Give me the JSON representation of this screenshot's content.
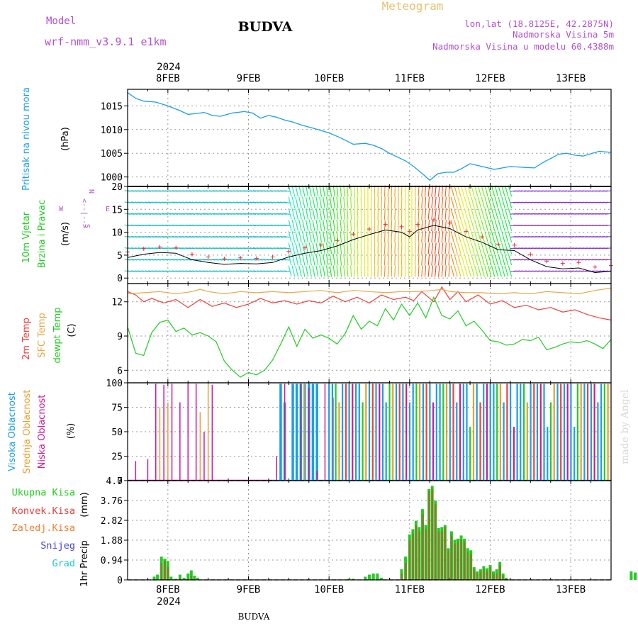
{
  "header": {
    "model_label": "Model",
    "model_name": "wrf-nmm_v3.9.1 e1km",
    "station": "BUDVA",
    "meteogram": "Meteogram",
    "lonlat": "lon,lat (18.8125E, 42.2875N)",
    "altitude": "Nadmorska Visina 5m",
    "model_altitude": "Nadmorska Visina u modelu 60.4388m",
    "footer_station": "BUDVA",
    "credit": "made by Angel"
  },
  "time_axis": {
    "top_year": "2024",
    "bottom_year": "2024",
    "days": [
      "8FEB",
      "9FEB",
      "10FEB",
      "11FEB",
      "12FEB",
      "13FEB"
    ],
    "start_day": 7.5,
    "end_day": 13.5
  },
  "colors": {
    "pressure": "#1a9fe8",
    "temp2m": "#f0403c",
    "sfc_temp": "#e8a848",
    "dewpt": "#22cc22",
    "high_cloud": "#1a9fe8",
    "mid_cloud": "#e8a030",
    "low_cloud": "#cc1a99",
    "total_precip": "#22cc22",
    "conv_precip": "#e84040",
    "frz_precip": "#f08030",
    "snow": "#4444dd",
    "hail": "#22cccc",
    "wind_dir_label": "#b050d0"
  },
  "chart_data": [
    {
      "type": "line",
      "name": "pressure",
      "ylabel": "Pritisak na nivou mora",
      "unit": "(hPa)",
      "ylim": [
        998,
        1018.5
      ],
      "yticks": [
        "1000",
        "1005",
        "1010",
        "1015"
      ],
      "ytick_values": [
        1000,
        1005,
        1010,
        1015
      ],
      "x": [
        7.5,
        7.6,
        7.7,
        7.85,
        8.0,
        8.15,
        8.25,
        8.35,
        8.45,
        8.55,
        8.65,
        8.8,
        8.95,
        9.05,
        9.15,
        9.25,
        9.35,
        9.45,
        9.55,
        9.65,
        9.8,
        9.9,
        10.0,
        10.15,
        10.3,
        10.45,
        10.55,
        10.65,
        10.75,
        10.85,
        10.95,
        11.05,
        11.15,
        11.25,
        11.35,
        11.45,
        11.55,
        11.65,
        11.75,
        11.85,
        11.95,
        12.05,
        12.15,
        12.25,
        12.35,
        12.45,
        12.55,
        12.65,
        12.75,
        12.85,
        12.95,
        13.05,
        13.15,
        13.25,
        13.35,
        13.5
      ],
      "y": [
        1017.8,
        1016.6,
        1016.0,
        1015.8,
        1015.0,
        1014.0,
        1013.2,
        1013.4,
        1013.6,
        1013.0,
        1012.8,
        1013.5,
        1013.8,
        1013.5,
        1012.4,
        1013.0,
        1012.6,
        1012.0,
        1011.6,
        1011.0,
        1010.3,
        1009.8,
        1009.3,
        1008.2,
        1006.9,
        1007.1,
        1006.7,
        1006.0,
        1005.0,
        1004.2,
        1003.4,
        1002.2,
        1000.8,
        999.3,
        1000.7,
        1001.0,
        1001.0,
        1001.8,
        1002.8,
        1002.4,
        1002.0,
        1001.6,
        1001.9,
        1002.2,
        1002.1,
        1002.0,
        1001.9,
        1003.0,
        1003.9,
        1004.8,
        1005.0,
        1004.6,
        1004.4,
        1004.9,
        1005.4,
        1005.2
      ]
    },
    {
      "type": "line",
      "name": "wind",
      "ylabel": "10m Vjetar",
      "ylabel2": "Brzina i Pravac",
      "unit": "(m/s)",
      "ylim": [
        -1.2,
        20
      ],
      "yticks": [
        "0",
        "5",
        "10",
        "15",
        "20"
      ],
      "ytick_values": [
        0,
        5,
        10,
        15,
        20
      ],
      "direction_labels": {
        "n": "N",
        "w": "W",
        "e": "E",
        "s": "S",
        "arrows": "<--|-->"
      },
      "x": [
        7.5,
        7.7,
        7.9,
        8.1,
        8.3,
        8.5,
        8.7,
        8.9,
        9.1,
        9.3,
        9.5,
        9.7,
        9.9,
        10.1,
        10.3,
        10.5,
        10.7,
        10.9,
        11.0,
        11.1,
        11.3,
        11.5,
        11.7,
        11.9,
        12.1,
        12.3,
        12.5,
        12.7,
        12.9,
        13.1,
        13.3,
        13.5
      ],
      "y": [
        4.5,
        5.2,
        5.6,
        5.4,
        4.0,
        3.4,
        3.0,
        3.2,
        3.1,
        3.4,
        4.6,
        5.4,
        6.0,
        7.0,
        8.4,
        9.5,
        10.5,
        10.0,
        9.0,
        10.5,
        11.5,
        10.8,
        9.0,
        7.8,
        6.2,
        6.0,
        4.0,
        2.5,
        2.0,
        2.2,
        1.2,
        1.5
      ]
    },
    {
      "type": "line",
      "name": "temperature",
      "ylabel": "2m Temp",
      "ylabel2": "SFC Temp",
      "ylabel3": "dewpt Temp",
      "unit": "(C)",
      "ylim": [
        4.9,
        13.6
      ],
      "yticks": [
        "6",
        "9",
        "12"
      ],
      "ytick_values": [
        6,
        9,
        12
      ],
      "series": [
        {
          "name": "2m Temp",
          "x": [
            7.5,
            7.6,
            7.7,
            7.8,
            7.95,
            8.1,
            8.25,
            8.4,
            8.55,
            8.7,
            8.85,
            9.0,
            9.15,
            9.3,
            9.45,
            9.6,
            9.75,
            9.9,
            10.05,
            10.2,
            10.35,
            10.5,
            10.65,
            10.8,
            10.95,
            11.05,
            11.15,
            11.3,
            11.4,
            11.5,
            11.6,
            11.7,
            11.85,
            12.0,
            12.15,
            12.3,
            12.45,
            12.6,
            12.75,
            12.9,
            13.05,
            13.2,
            13.35,
            13.5
          ],
          "y": [
            12.9,
            12.6,
            12.0,
            12.3,
            11.9,
            12.2,
            11.5,
            12.2,
            11.6,
            11.9,
            11.5,
            11.8,
            12.3,
            11.9,
            12.1,
            11.8,
            12.1,
            11.9,
            12.5,
            12.0,
            12.4,
            11.9,
            12.6,
            12.2,
            12.4,
            12.1,
            12.9,
            12.0,
            13.3,
            12.2,
            12.9,
            12.0,
            12.6,
            11.8,
            12.1,
            11.5,
            11.7,
            11.3,
            11.5,
            11.1,
            11.3,
            10.9,
            10.6,
            10.4
          ]
        },
        {
          "name": "SFC Temp",
          "x": [
            7.5,
            7.7,
            7.9,
            8.1,
            8.3,
            8.4,
            8.5,
            8.7,
            8.9,
            9.1,
            9.3,
            9.5,
            9.7,
            9.9,
            10.1,
            10.3,
            10.5,
            10.7,
            10.9,
            11.1,
            11.3,
            11.4,
            11.5,
            11.7,
            11.9,
            12.1,
            12.3,
            12.5,
            12.7,
            12.9,
            13.1,
            13.3,
            13.5
          ],
          "y": [
            12.7,
            12.8,
            12.9,
            12.7,
            12.9,
            13.1,
            12.9,
            12.7,
            12.9,
            12.8,
            12.9,
            12.8,
            12.9,
            13.0,
            12.8,
            13.0,
            12.9,
            12.8,
            12.9,
            12.9,
            13.0,
            13.1,
            12.9,
            12.8,
            12.8,
            12.7,
            12.8,
            12.7,
            12.9,
            12.8,
            12.7,
            13.0,
            13.2
          ]
        },
        {
          "name": "dewpt Temp",
          "x": [
            7.5,
            7.6,
            7.7,
            7.8,
            7.9,
            8.0,
            8.1,
            8.2,
            8.3,
            8.4,
            8.5,
            8.6,
            8.7,
            8.8,
            8.9,
            9.0,
            9.1,
            9.2,
            9.3,
            9.4,
            9.5,
            9.6,
            9.7,
            9.8,
            9.9,
            10.0,
            10.1,
            10.2,
            10.3,
            10.4,
            10.5,
            10.6,
            10.7,
            10.8,
            10.9,
            11.0,
            11.1,
            11.2,
            11.3,
            11.4,
            11.5,
            11.6,
            11.7,
            11.8,
            11.9,
            12.0,
            12.1,
            12.2,
            12.3,
            12.4,
            12.5,
            12.6,
            12.7,
            12.8,
            12.9,
            13.0,
            13.1,
            13.2,
            13.3,
            13.4,
            13.5
          ],
          "y": [
            9.8,
            7.5,
            7.3,
            9.3,
            10.2,
            10.4,
            9.4,
            9.7,
            9.1,
            9.3,
            9.0,
            8.5,
            6.8,
            6.0,
            5.4,
            5.8,
            5.6,
            6.0,
            6.9,
            8.3,
            9.8,
            8.1,
            9.6,
            8.8,
            9.1,
            8.8,
            8.3,
            9.2,
            10.8,
            9.6,
            10.3,
            9.9,
            11.4,
            10.4,
            11.8,
            10.8,
            11.9,
            10.6,
            12.4,
            10.8,
            10.5,
            11.2,
            9.9,
            10.3,
            9.5,
            8.6,
            8.5,
            8.2,
            8.3,
            8.7,
            8.6,
            8.9,
            7.8,
            8.0,
            8.3,
            8.5,
            8.4,
            8.6,
            8.3,
            7.9,
            8.7
          ]
        }
      ]
    },
    {
      "type": "bar",
      "name": "clouds",
      "ylabel": "Visoka Oblacnost",
      "ylabel2": "Srednja Oblacnost",
      "ylabel3": "Niska Oblacnost",
      "unit": "(%)",
      "ylim": [
        0,
        100
      ],
      "yticks": [
        "0",
        "25",
        "50",
        "75",
        "100"
      ],
      "ytick_values": [
        0,
        25,
        50,
        75,
        100
      ],
      "low": {
        "x": [
          7.6,
          7.75,
          7.85,
          7.95,
          8.05,
          8.15,
          8.25,
          8.35,
          8.45,
          8.55,
          9.35,
          9.45,
          9.65,
          9.75,
          9.85,
          9.95,
          10.05
        ],
        "y": [
          20,
          22,
          99,
          98,
          99,
          80,
          99,
          99,
          50,
          98,
          25,
          99,
          99,
          95,
          10,
          99,
          85
        ]
      },
      "mid": {
        "x": [
          7.9,
          8.0,
          8.4,
          8.5,
          9.7
        ],
        "y": [
          75,
          80,
          70,
          99,
          99
        ]
      },
      "high": {
        "x": [
          9.4,
          9.45,
          9.55,
          9.6,
          9.65,
          9.7,
          9.75,
          9.8,
          9.85
        ],
        "y": [
          99,
          80,
          99,
          99,
          99,
          99,
          99,
          99,
          99
        ]
      },
      "dense_from": 10.0,
      "dense_to": 13.5,
      "dense_gaps": [
        11.75,
        12.3,
        12.7,
        13.05
      ]
    },
    {
      "type": "bar",
      "name": "precipitation",
      "ylabel": "1hr Precip",
      "unit": "(mm)",
      "legend": [
        "Ukupna Kisa",
        "Konvek.Kisa",
        "Zaledj.Kisa",
        "Snijeg",
        "Grad"
      ],
      "ylim": [
        0,
        4.7
      ],
      "yticks": [
        "0",
        "0.94",
        "1.88",
        "2.82",
        "3.76",
        "4.7"
      ],
      "ytick_values": [
        0,
        0.94,
        1.88,
        2.82,
        3.76,
        4.7
      ],
      "bars_x": [
        7.83,
        7.87,
        7.92,
        7.96,
        8.0,
        8.04,
        8.1,
        8.15,
        8.2,
        8.25,
        8.29,
        8.33,
        8.37,
        10.25,
        10.3,
        10.45,
        10.5,
        10.55,
        10.6,
        10.65,
        10.9,
        10.95,
        11.0,
        11.04,
        11.08,
        11.12,
        11.16,
        11.2,
        11.24,
        11.28,
        11.32,
        11.36,
        11.4,
        11.44,
        11.48,
        11.52,
        11.56,
        11.6,
        11.64,
        11.68,
        11.72,
        11.76,
        11.8,
        11.84,
        11.88,
        11.92,
        11.96,
        12.0,
        12.04,
        12.08,
        12.12,
        12.16,
        12.2,
        13.75,
        13.8,
        13.85
      ],
      "bars_total": [
        0.15,
        0.25,
        1.1,
        1.0,
        0.9,
        0.15,
        0.05,
        0.25,
        0.1,
        0.3,
        0.45,
        0.2,
        0.1,
        0.05,
        0.05,
        0.15,
        0.25,
        0.3,
        0.3,
        0.1,
        0.5,
        1.1,
        2.15,
        2.4,
        2.8,
        2.5,
        3.35,
        2.6,
        4.3,
        4.45,
        3.75,
        2.45,
        2.5,
        2.6,
        1.5,
        2.3,
        1.9,
        1.95,
        2.1,
        1.95,
        1.5,
        1.4,
        0.6,
        0.4,
        0.5,
        0.65,
        0.55,
        0.7,
        0.4,
        0.5,
        0.85,
        0.3,
        0.1,
        0.4,
        0.35,
        0.2
      ],
      "bars_conv": [
        0.0,
        0.0,
        0.8,
        0.9,
        0.6,
        0.0,
        0.0,
        0.1,
        0.0,
        0.0,
        0.2,
        0.0,
        0.0,
        0.0,
        0.0,
        0.0,
        0.0,
        0.0,
        0.0,
        0.0,
        0.3,
        0.8,
        1.9,
        2.2,
        2.6,
        2.3,
        3.1,
        2.4,
        4.2,
        4.3,
        3.6,
        2.3,
        2.3,
        2.5,
        1.4,
        2.1,
        1.7,
        1.8,
        1.9,
        1.8,
        1.3,
        1.2,
        0.5,
        0.3,
        0.4,
        0.5,
        0.4,
        0.6,
        0.3,
        0.3,
        0.7,
        0.2,
        0.0,
        0.0,
        0.0,
        0.0
      ]
    }
  ]
}
